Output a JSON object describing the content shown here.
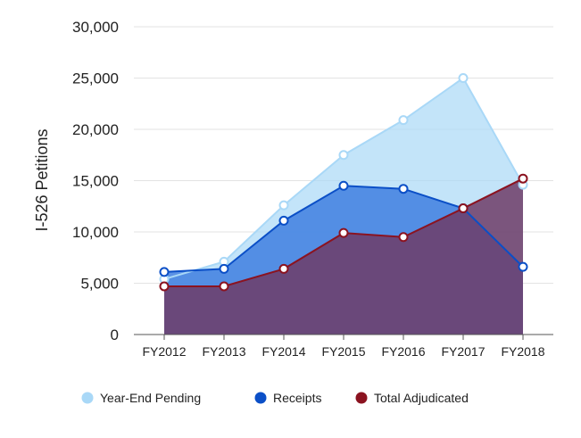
{
  "chart_data": {
    "type": "area",
    "categories": [
      "FY2012",
      "FY2013",
      "FY2014",
      "FY2015",
      "FY2016",
      "FY2017",
      "FY2018"
    ],
    "ylabel": "I-526 Petitions",
    "xlabel": "",
    "ylim": [
      0,
      30000
    ],
    "yticks": [
      0,
      5000,
      10000,
      15000,
      20000,
      25000,
      30000
    ],
    "ytick_labels": [
      "0",
      "5,000",
      "10,000",
      "15,000",
      "20,000",
      "25,000",
      "30,000"
    ],
    "grid": true,
    "legend_position": "bottom",
    "series": [
      {
        "name": "Year-End Pending",
        "values": [
          5400,
          7100,
          12600,
          17500,
          20900,
          25000,
          14600
        ],
        "color": "#a9d8f7",
        "line_color": "#a9d8f7"
      },
      {
        "name": "Receipts",
        "values": [
          6100,
          6400,
          11100,
          14500,
          14200,
          12300,
          6600
        ],
        "color": "#3f7fe0",
        "line_color": "#0b4fc7"
      },
      {
        "name": "Total Adjudicated",
        "values": [
          4700,
          4700,
          6400,
          9900,
          9500,
          12300,
          15200
        ],
        "color": "#6e3c67",
        "line_color": "#8b1320"
      }
    ]
  }
}
